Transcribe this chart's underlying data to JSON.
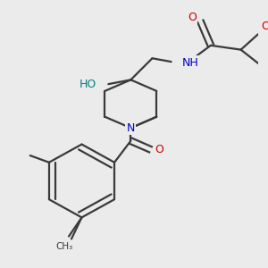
{
  "bg_color": "#ebebeb",
  "bond_color": "#3a3a3a",
  "bond_width": 1.6,
  "atom_colors": {
    "O": "#cc0000",
    "N": "#0000cc",
    "HO": "#008080",
    "NH": "#0000cc",
    "C": "#3a3a3a"
  },
  "figsize": [
    3.0,
    3.0
  ],
  "dpi": 100
}
